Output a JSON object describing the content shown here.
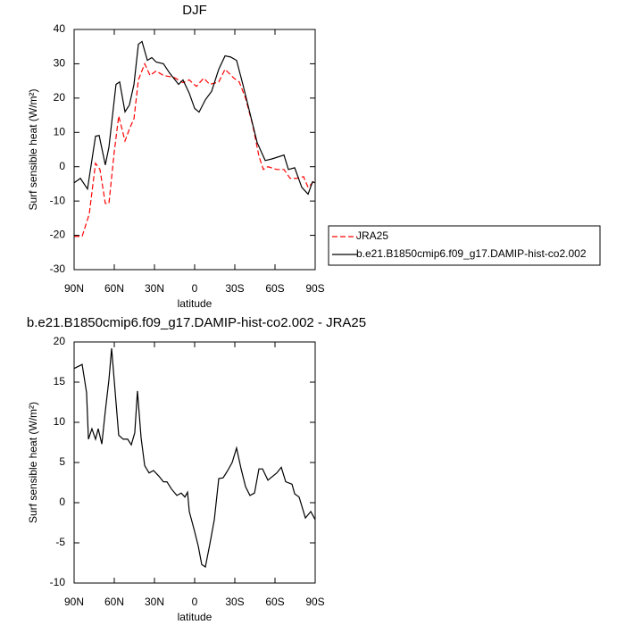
{
  "chart_data": [
    {
      "type": "line",
      "title": "DJF",
      "xlabel": "latitude",
      "ylabel": "Surf sensible heat (W/m²)",
      "xlim": [
        90,
        -90
      ],
      "xticks": [
        {
          "value": 90,
          "label": "90N"
        },
        {
          "value": 60,
          "label": "60N"
        },
        {
          "value": 30,
          "label": "30N"
        },
        0,
        {
          "value": -30,
          "label": "30S"
        },
        {
          "value": -60,
          "label": "60S"
        },
        {
          "value": -90,
          "label": "90S"
        }
      ],
      "ylim": [
        -30,
        40
      ],
      "yticks": [
        -30,
        -20,
        -10,
        0,
        10,
        20,
        30,
        40
      ],
      "legend": "right",
      "series": [
        {
          "name": "JRA25",
          "color": "#ff0000",
          "dashed": true,
          "x": [
            90,
            84,
            78.7,
            74,
            70.7,
            66.7,
            64,
            60,
            56.7,
            52,
            48.7,
            45.3,
            42,
            37.3,
            33.3,
            28.7,
            23.3,
            15.3,
            8.7,
            4,
            -1.3,
            -6.7,
            -11.3,
            -18,
            -22.7,
            -29.3,
            -33.3,
            -38,
            -43.3,
            -48,
            -51.3,
            -54.7,
            -61.3,
            -66.7,
            -71.3,
            -76,
            -81.3,
            -84.7,
            -88,
            -90
          ],
          "values": [
            -20.3,
            -20.3,
            -13.8,
            1,
            -0.8,
            -10.7,
            -10.7,
            4.4,
            14.8,
            7.5,
            11,
            14,
            25.3,
            30,
            26.6,
            27.9,
            26.6,
            26,
            24.5,
            25.3,
            23.4,
            25.8,
            24,
            24.7,
            28.4,
            25.8,
            24.7,
            20,
            12.2,
            3.1,
            -0.8,
            0,
            -0.8,
            -0.8,
            -3.4,
            -3.4,
            -2.9,
            -6,
            -4.7,
            -3.4
          ]
        },
        {
          "name": "b.e21.B1850cmip6.f09_g17.DAMIP-hist-co2.002",
          "color": "#000000",
          "dashed": false,
          "x": [
            90,
            85.3,
            80,
            74,
            71.3,
            66.7,
            64,
            58.7,
            56,
            52,
            48.7,
            45.3,
            42,
            39.3,
            35.3,
            32,
            28.7,
            23.3,
            18.7,
            12,
            8.7,
            4,
            0,
            -3.3,
            -8,
            -12.7,
            -18,
            -22.7,
            -26.7,
            -31.3,
            -36,
            -41.3,
            -46.7,
            -52.7,
            -58,
            -66.7,
            -70,
            -74.7,
            -80,
            -84.7,
            -88,
            -90
          ],
          "values": [
            -4.7,
            -3.4,
            -6.5,
            8.9,
            9.1,
            0.5,
            5.7,
            24,
            24.7,
            16,
            18,
            24,
            35.7,
            36.5,
            31,
            31.8,
            30.5,
            30,
            27.3,
            24,
            25.3,
            21.4,
            17,
            15.9,
            19.5,
            22,
            28.4,
            32.3,
            32,
            31,
            24,
            15.6,
            7,
            1.8,
            2.3,
            3.4,
            -0.8,
            -0.3,
            -6,
            -8,
            -4.4,
            -4.7
          ]
        }
      ]
    },
    {
      "type": "line",
      "title": "b.e21.B1850cmip6.f09_g17.DAMIP-hist-co2.002 - JRA25",
      "xlabel": "latitude",
      "ylabel": "Surf sensible heat (W/m²)",
      "xlim": [
        90,
        -90
      ],
      "xticks": [
        {
          "value": 90,
          "label": "90N"
        },
        {
          "value": 60,
          "label": "60N"
        },
        {
          "value": 30,
          "label": "30N"
        },
        0,
        {
          "value": -30,
          "label": "30S"
        },
        {
          "value": -60,
          "label": "60S"
        },
        {
          "value": -90,
          "label": "90S"
        }
      ],
      "ylim": [
        -10,
        20
      ],
      "yticks": [
        -10,
        -5,
        0,
        5,
        10,
        15,
        20
      ],
      "color": "#000000",
      "x": [
        90,
        84,
        80.7,
        79.3,
        76.7,
        74,
        72,
        69.3,
        66.7,
        64,
        62,
        59.3,
        56.7,
        53.3,
        50,
        47.3,
        44.7,
        42.7,
        40,
        37.3,
        34,
        30.7,
        26.7,
        23.3,
        20.7,
        17.3,
        13.3,
        10,
        7.3,
        5.3,
        4,
        0,
        -2.7,
        -5.3,
        -8,
        -11.3,
        -14.7,
        -18,
        -21.3,
        -24.7,
        -28,
        -31.3,
        -34.7,
        -38,
        -41.3,
        -44.7,
        -48,
        -50.7,
        -54.7,
        -61.3,
        -64.7,
        -68,
        -72.7,
        -74.7,
        -78,
        -82.7,
        -86.7,
        -90
      ],
      "values": [
        16.7,
        17.2,
        13.7,
        7.9,
        9.2,
        7.9,
        9.2,
        7.3,
        11.4,
        15.3,
        19.2,
        13.7,
        8.4,
        7.9,
        7.9,
        7.2,
        8.7,
        13.9,
        8.1,
        4.6,
        3.7,
        4,
        3.3,
        2.6,
        2.6,
        1.7,
        0.9,
        1.2,
        0.7,
        1.3,
        -1.1,
        -3.6,
        -5.4,
        -7.7,
        -8,
        -5.2,
        -2.1,
        3,
        3.1,
        4,
        5,
        6.8,
        4.2,
        2,
        0.9,
        1.2,
        4.2,
        4.2,
        2.8,
        3.7,
        4.4,
        2.6,
        2.3,
        1.1,
        0.7,
        -1.9,
        -1.1,
        -2.1
      ]
    }
  ]
}
